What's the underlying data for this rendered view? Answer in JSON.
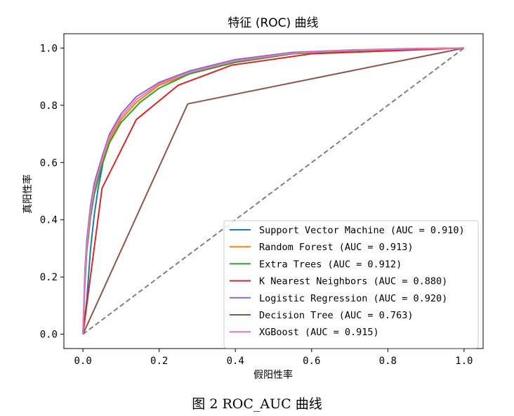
{
  "caption": "图 2 ROC_AUC 曲线",
  "chart_data": {
    "type": "line",
    "title": "特征 (ROC) 曲线",
    "xlabel": "假阳性率",
    "ylabel": "真阳性率",
    "xlim": [
      -0.05,
      1.05
    ],
    "ylim": [
      -0.05,
      1.05
    ],
    "xticks": [
      0.0,
      0.2,
      0.4,
      0.6,
      0.8,
      1.0
    ],
    "xtick_labels": [
      "0.0",
      "0.2",
      "0.4",
      "0.6",
      "0.8",
      "1.0"
    ],
    "yticks": [
      0.0,
      0.2,
      0.4,
      0.6,
      0.8,
      1.0
    ],
    "ytick_labels": [
      "0.0",
      "0.2",
      "0.4",
      "0.6",
      "0.8",
      "1.0"
    ],
    "grid": false,
    "legend_position": "lower-right",
    "series": [
      {
        "name": "Support Vector Machine (AUC = 0.910)",
        "color": "#1f77b4",
        "x": [
          0,
          0.01,
          0.02,
          0.03,
          0.04,
          0.05,
          0.055
        ],
        "y": [
          0,
          0.12,
          0.3,
          0.42,
          0.51,
          0.58,
          0.62
        ]
      },
      {
        "name": "Random Forest (AUC = 0.913)",
        "color": "#ff7f0e",
        "x": [
          0,
          0.005,
          0.01,
          0.02,
          0.03,
          0.05,
          0.07,
          0.1,
          0.14,
          0.2,
          0.28,
          0.4,
          0.55,
          0.7,
          0.85,
          1.0
        ],
        "y": [
          0,
          0.18,
          0.3,
          0.42,
          0.5,
          0.6,
          0.68,
          0.75,
          0.81,
          0.87,
          0.91,
          0.95,
          0.98,
          0.99,
          0.997,
          1.0
        ]
      },
      {
        "name": "Extra Trees (AUC = 0.912)",
        "color": "#2ca02c",
        "x": [
          0,
          0.005,
          0.01,
          0.02,
          0.03,
          0.05,
          0.07,
          0.1,
          0.15,
          0.2,
          0.28,
          0.4,
          0.55,
          0.7,
          0.85,
          1.0
        ],
        "y": [
          0,
          0.17,
          0.29,
          0.41,
          0.49,
          0.59,
          0.67,
          0.74,
          0.81,
          0.86,
          0.91,
          0.95,
          0.98,
          0.99,
          0.997,
          1.0
        ]
      },
      {
        "name": "K Nearest Neighbors (AUC = 0.880)",
        "color": "#d62728",
        "x": [
          0,
          0.05,
          0.14,
          0.25,
          0.39,
          0.6,
          1.0
        ],
        "y": [
          0,
          0.51,
          0.75,
          0.87,
          0.94,
          0.98,
          1.0
        ]
      },
      {
        "name": "Logistic Regression (AUC = 0.920)",
        "color": "#9467bd",
        "x": [
          0,
          0.005,
          0.01,
          0.02,
          0.03,
          0.05,
          0.07,
          0.1,
          0.14,
          0.2,
          0.28,
          0.4,
          0.55,
          0.7,
          0.85,
          1.0
        ],
        "y": [
          0,
          0.22,
          0.33,
          0.45,
          0.53,
          0.62,
          0.7,
          0.77,
          0.83,
          0.88,
          0.92,
          0.96,
          0.985,
          0.993,
          0.998,
          1.0
        ]
      },
      {
        "name": "Decision Tree (AUC = 0.763)",
        "color": "#8c564b",
        "x": [
          0,
          0.275,
          1.0
        ],
        "y": [
          0,
          0.805,
          1.0
        ]
      },
      {
        "name": "XGBoost (AUC = 0.915)",
        "color": "#e377c2",
        "x": [
          0,
          0.005,
          0.01,
          0.02,
          0.03,
          0.05,
          0.07,
          0.1,
          0.14,
          0.2,
          0.28,
          0.4,
          0.55,
          0.7,
          0.85,
          1.0
        ],
        "y": [
          0,
          0.2,
          0.31,
          0.43,
          0.51,
          0.61,
          0.69,
          0.76,
          0.82,
          0.875,
          0.915,
          0.955,
          0.982,
          0.992,
          0.997,
          1.0
        ]
      }
    ],
    "reference_line": {
      "x": [
        0,
        1
      ],
      "y": [
        0,
        1
      ],
      "color": "#808080",
      "style": "dashed"
    }
  }
}
